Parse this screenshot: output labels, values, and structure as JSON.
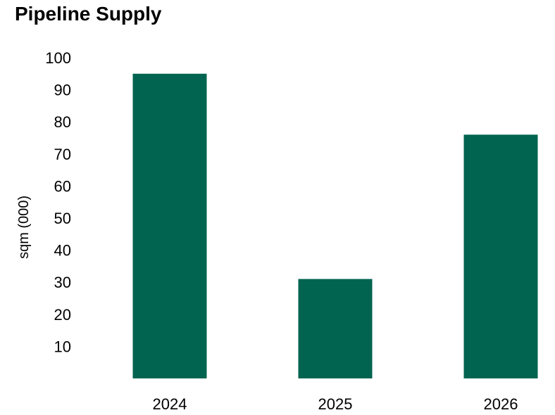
{
  "chart_data": {
    "type": "bar",
    "title": "Pipeline Supply",
    "xlabel": "",
    "ylabel": "sqm (000)",
    "categories": [
      "2024",
      "2025",
      "2026"
    ],
    "values": [
      95,
      31,
      76
    ],
    "ylim": [
      0,
      100
    ],
    "yticks": [
      10,
      20,
      30,
      40,
      50,
      60,
      70,
      80,
      90,
      100
    ],
    "grid": false,
    "legend": "none",
    "bar_color": "#006450"
  }
}
